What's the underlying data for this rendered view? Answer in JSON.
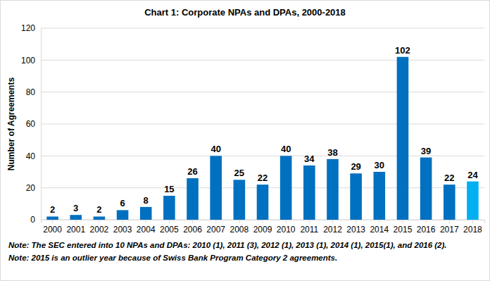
{
  "chart_data": {
    "type": "bar",
    "title": "Chart 1: Corporate NPAs and DPAs, 2000-2018",
    "y_label": "Number of Agreements",
    "categories": [
      "2000",
      "2001",
      "2002",
      "2003",
      "2004",
      "2005",
      "2006",
      "2007",
      "2008",
      "2009",
      "2010",
      "2011",
      "2012",
      "2013",
      "2014",
      "2015",
      "2016",
      "2017",
      "2018"
    ],
    "values": [
      2,
      3,
      2,
      6,
      8,
      15,
      26,
      40,
      25,
      22,
      40,
      34,
      38,
      29,
      30,
      102,
      39,
      22,
      24
    ],
    "colors": [
      "#0070c0",
      "#0070c0",
      "#0070c0",
      "#0070c0",
      "#0070c0",
      "#0070c0",
      "#0070c0",
      "#0070c0",
      "#0070c0",
      "#0070c0",
      "#0070c0",
      "#0070c0",
      "#0070c0",
      "#0070c0",
      "#0070c0",
      "#0070c0",
      "#0070c0",
      "#0070c0",
      "#00b0f0"
    ],
    "ylim": [
      0,
      120
    ],
    "yticks": [
      0,
      20,
      40,
      60,
      80,
      100,
      120
    ],
    "grid": true,
    "data_labels": true,
    "annotations": [
      "Note: The SEC entered into 10 NPAs and DPAs: 2010 (1), 2011 (3), 2012 (1), 2013 (1), 2014 (1), 2015(1), and 2016 (2).",
      "Note: 2015 is an outlier year because of Swiss Bank Program Category 2 agreements."
    ]
  }
}
